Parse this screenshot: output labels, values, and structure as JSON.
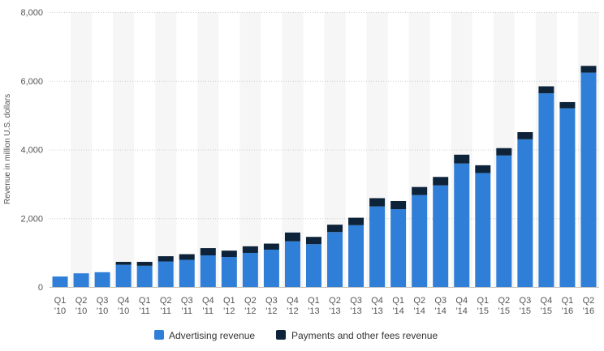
{
  "chart_data": {
    "type": "bar",
    "stacked": true,
    "categories": [
      [
        "Q1",
        "'10"
      ],
      [
        "Q2",
        "'10"
      ],
      [
        "Q3",
        "'10"
      ],
      [
        "Q4",
        "'10"
      ],
      [
        "Q1",
        "'11"
      ],
      [
        "Q2",
        "'11"
      ],
      [
        "Q3",
        "'11"
      ],
      [
        "Q4",
        "'11"
      ],
      [
        "Q1",
        "'12"
      ],
      [
        "Q2",
        "'12"
      ],
      [
        "Q3",
        "'12"
      ],
      [
        "Q4",
        "'12"
      ],
      [
        "Q1",
        "'13"
      ],
      [
        "Q2",
        "'13"
      ],
      [
        "Q3",
        "'13"
      ],
      [
        "Q4",
        "'13"
      ],
      [
        "Q1",
        "'14"
      ],
      [
        "Q2",
        "'14"
      ],
      [
        "Q3",
        "'14"
      ],
      [
        "Q4",
        "'14"
      ],
      [
        "Q1",
        "'15"
      ],
      [
        "Q2",
        "'15"
      ],
      [
        "Q3",
        "'15"
      ],
      [
        "Q4",
        "'15"
      ],
      [
        "Q1",
        "'16"
      ],
      [
        "Q2",
        "'16"
      ]
    ],
    "series": [
      {
        "name": "Advertising revenue",
        "color": "#2f7ed8",
        "values": [
          304,
          397,
          430,
          646,
          617,
          742,
          791,
          920,
          872,
          992,
          1086,
          1329,
          1245,
          1599,
          1798,
          2344,
          2265,
          2676,
          2957,
          3594,
          3317,
          3827,
          4299,
          5637,
          5201,
          6239
        ]
      },
      {
        "name": "Payments and other fees revenue",
        "color": "#0d233a",
        "values": [
          0,
          0,
          0,
          85,
          114,
          153,
          163,
          211,
          186,
          192,
          176,
          256,
          213,
          214,
          218,
          241,
          237,
          234,
          246,
          257,
          226,
          215,
          208,
          204,
          181,
          197
        ]
      }
    ],
    "ylabel": "Revenue in million U.S. dollars",
    "ylim": [
      0,
      8000
    ],
    "yticks": [
      0,
      2000,
      4000,
      6000,
      8000
    ],
    "ytick_labels": [
      "0",
      "2,000",
      "4,000",
      "6,000",
      "8,000"
    ],
    "grid": true,
    "legend_position": "bottom-center"
  }
}
